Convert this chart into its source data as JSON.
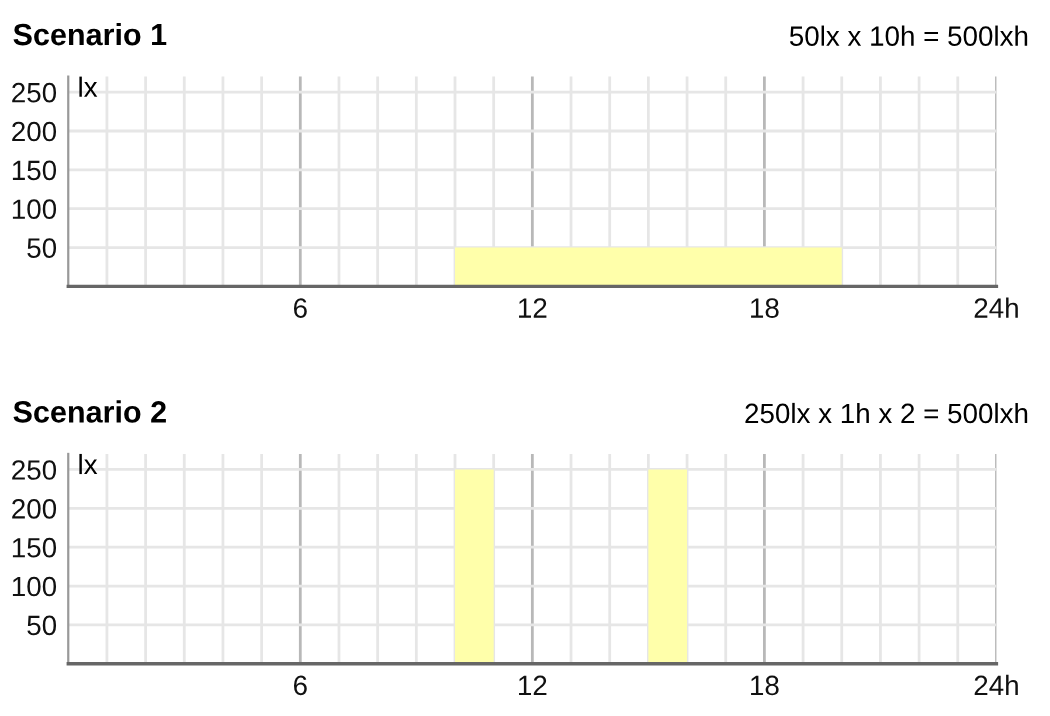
{
  "chart_data": [
    {
      "type": "histogram",
      "title": "Scenario 1",
      "annotations": [
        "50lx x 10h = 500lxh"
      ],
      "ylabel": "lx",
      "bins": [
        10,
        20
      ],
      "values": [
        50
      ],
      "color": "#ffffaa",
      "xlim": [
        0,
        24
      ],
      "ylim": [
        0,
        270
      ],
      "yticks": [
        50,
        100,
        150,
        200,
        250
      ],
      "xticks": [
        {
          "value": 1,
          "label": null
        },
        {
          "value": 2,
          "label": null
        },
        {
          "value": 3,
          "label": null
        },
        {
          "value": 4,
          "label": null
        },
        {
          "value": 5,
          "label": null
        },
        6,
        {
          "value": 7,
          "label": null
        },
        {
          "value": 8,
          "label": null
        },
        {
          "value": 9,
          "label": null
        },
        {
          "value": 10,
          "label": null
        },
        {
          "value": 11,
          "label": null
        },
        12,
        {
          "value": 13,
          "label": null
        },
        {
          "value": 14,
          "label": null
        },
        {
          "value": 15,
          "label": null
        },
        {
          "value": 16,
          "label": null
        },
        {
          "value": 17,
          "label": null
        },
        18,
        {
          "value": 19,
          "label": null
        },
        {
          "value": 20,
          "label": null
        },
        {
          "value": 21,
          "label": null
        },
        {
          "value": 22,
          "label": null
        },
        {
          "value": 23,
          "label": null
        },
        {
          "value": 24,
          "label": "24h"
        }
      ],
      "grid": true
    },
    {
      "type": "histogram",
      "title": "Scenario 2",
      "annotations": [
        "250lx x 1h x 2 = 500lxh"
      ],
      "ylabel": "lx",
      "bins": [
        10,
        11,
        15,
        16
      ],
      "values": [
        250,
        null,
        250
      ],
      "color": "#ffffaa",
      "xlim": [
        0,
        24
      ],
      "ylim": [
        0,
        270
      ],
      "yticks": [
        50,
        100,
        150,
        200,
        250
      ],
      "xticks": [
        {
          "value": 1,
          "label": null
        },
        {
          "value": 2,
          "label": null
        },
        {
          "value": 3,
          "label": null
        },
        {
          "value": 4,
          "label": null
        },
        {
          "value": 5,
          "label": null
        },
        6,
        {
          "value": 7,
          "label": null
        },
        {
          "value": 8,
          "label": null
        },
        {
          "value": 9,
          "label": null
        },
        {
          "value": 10,
          "label": null
        },
        {
          "value": 11,
          "label": null
        },
        12,
        {
          "value": 13,
          "label": null
        },
        {
          "value": 14,
          "label": null
        },
        {
          "value": 15,
          "label": null
        },
        {
          "value": 16,
          "label": null
        },
        {
          "value": 17,
          "label": null
        },
        18,
        {
          "value": 19,
          "label": null
        },
        {
          "value": 20,
          "label": null
        },
        {
          "value": 21,
          "label": null
        },
        {
          "value": 22,
          "label": null
        },
        {
          "value": 23,
          "label": null
        },
        {
          "value": 24,
          "label": "24h"
        }
      ],
      "grid": true
    }
  ]
}
